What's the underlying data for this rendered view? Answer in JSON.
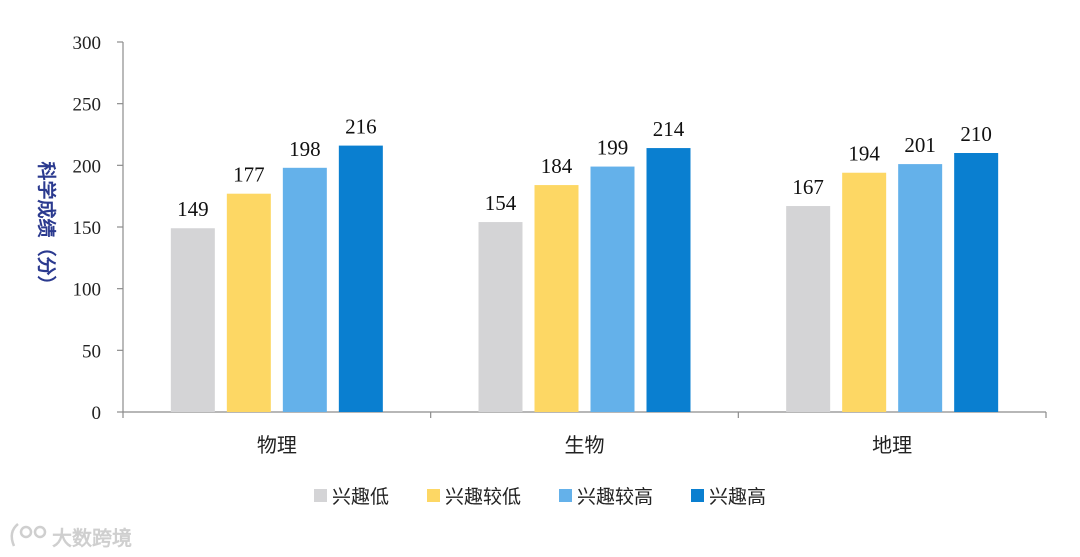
{
  "chart_data": {
    "type": "bar",
    "title": "",
    "ylabel": "科学成绩（分）",
    "xlabel": "",
    "ylim": [
      0,
      300
    ],
    "yticks": [
      0,
      50,
      100,
      150,
      200,
      250,
      300
    ],
    "categories": [
      "物理",
      "生物",
      "地理"
    ],
    "series": [
      {
        "name": "兴趣低",
        "color": "#d4d4d6",
        "values": [
          149,
          154,
          167
        ]
      },
      {
        "name": "兴趣较低",
        "color": "#fdd764",
        "values": [
          177,
          184,
          194
        ]
      },
      {
        "name": "兴趣较高",
        "color": "#64b1ea",
        "values": [
          198,
          199,
          201
        ]
      },
      {
        "name": "兴趣高",
        "color": "#0a7fd0",
        "values": [
          216,
          214,
          210
        ]
      }
    ],
    "grid": false,
    "legend_position": "bottom"
  },
  "watermark": {
    "text": "大数跨境",
    "icon": "brand-logo-icon"
  }
}
